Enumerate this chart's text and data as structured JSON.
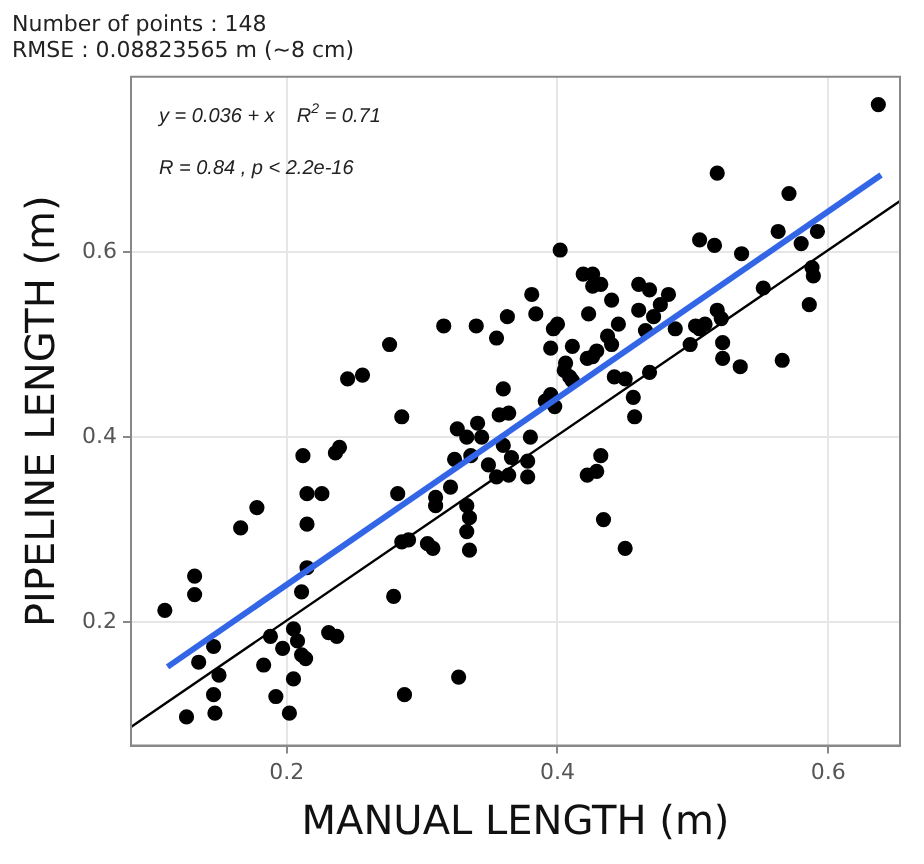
{
  "chart_data": {
    "type": "scatter",
    "title": "Number of points : 148",
    "subtitle": "RMSE : 0.08823565 m (~8 cm)",
    "xlabel": "MANUAL LENGTH (m)",
    "ylabel": "PIPELINE LENGTH (m)",
    "annotations": [
      "y = 0.036 + x    R$^{2}$ = 0.71",
      "R = 0.84 , p < 2.2e-16"
    ],
    "xlim": [
      0.085,
      0.653
    ],
    "ylim": [
      0.067,
      0.789
    ],
    "xticks": [
      0.2,
      0.4,
      0.6
    ],
    "yticks": [
      0.2,
      0.4,
      0.6
    ],
    "grid": true,
    "marker": "circle",
    "series": [
      {
        "type": "scatter",
        "color": "#000000",
        "x": [
          0.381,
          0.384,
          0.316,
          0.34,
          0.363,
          0.355,
          0.276,
          0.245,
          0.256,
          0.285,
          0.36,
          0.357,
          0.364,
          0.326,
          0.341,
          0.333,
          0.344,
          0.38,
          0.212,
          0.236,
          0.239,
          0.324,
          0.336,
          0.36,
          0.349,
          0.378,
          0.571,
          0.518,
          0.402,
          0.505,
          0.516,
          0.536,
          0.563,
          0.58,
          0.592,
          0.588,
          0.589,
          0.586,
          0.552,
          0.419,
          0.426,
          0.426,
          0.432,
          0.44,
          0.46,
          0.468,
          0.482,
          0.476,
          0.46,
          0.471,
          0.423,
          0.4,
          0.397,
          0.445,
          0.465,
          0.487,
          0.502,
          0.509,
          0.505,
          0.518,
          0.521,
          0.498,
          0.522,
          0.437,
          0.429,
          0.44,
          0.411,
          0.395,
          0.422,
          0.426,
          0.406,
          0.405,
          0.409,
          0.411,
          0.442,
          0.45,
          0.468,
          0.522,
          0.535,
          0.566,
          0.456,
          0.457,
          0.395,
          0.391,
          0.398,
          0.366,
          0.422,
          0.432,
          0.429,
          0.364,
          0.215,
          0.226,
          0.178,
          0.166,
          0.215,
          0.215,
          0.211,
          0.132,
          0.132,
          0.11,
          0.146,
          0.135,
          0.15,
          0.146,
          0.147,
          0.126,
          0.188,
          0.183,
          0.197,
          0.205,
          0.208,
          0.211,
          0.214,
          0.205,
          0.192,
          0.202,
          0.231,
          0.237,
          0.279,
          0.282,
          0.31,
          0.31,
          0.321,
          0.285,
          0.29,
          0.304,
          0.308,
          0.333,
          0.335,
          0.333,
          0.335,
          0.355,
          0.378,
          0.287,
          0.327,
          0.434,
          0.45,
          0.637
        ],
        "values": [
          0.554,
          0.533,
          0.52,
          0.52,
          0.53,
          0.507,
          0.5,
          0.463,
          0.467,
          0.422,
          0.452,
          0.424,
          0.426,
          0.409,
          0.415,
          0.4,
          0.4,
          0.4,
          0.38,
          0.383,
          0.389,
          0.376,
          0.38,
          0.391,
          0.37,
          0.374,
          0.663,
          0.685,
          0.602,
          0.613,
          0.607,
          0.598,
          0.622,
          0.609,
          0.622,
          0.583,
          0.574,
          0.543,
          0.561,
          0.576,
          0.576,
          0.563,
          0.565,
          0.548,
          0.565,
          0.559,
          0.554,
          0.543,
          0.537,
          0.53,
          0.533,
          0.522,
          0.517,
          0.522,
          0.515,
          0.517,
          0.52,
          0.522,
          0.517,
          0.537,
          0.528,
          0.5,
          0.502,
          0.509,
          0.493,
          0.5,
          0.498,
          0.496,
          0.485,
          0.487,
          0.48,
          0.472,
          0.465,
          0.461,
          0.465,
          0.463,
          0.47,
          0.485,
          0.476,
          0.483,
          0.443,
          0.422,
          0.446,
          0.439,
          0.433,
          0.378,
          0.359,
          0.38,
          0.363,
          0.359,
          0.339,
          0.339,
          0.324,
          0.302,
          0.306,
          0.259,
          0.233,
          0.25,
          0.23,
          0.213,
          0.174,
          0.157,
          0.143,
          0.122,
          0.102,
          0.098,
          0.185,
          0.154,
          0.172,
          0.193,
          0.18,
          0.165,
          0.161,
          0.139,
          0.12,
          0.102,
          0.189,
          0.185,
          0.228,
          0.339,
          0.335,
          0.326,
          0.346,
          0.287,
          0.289,
          0.285,
          0.28,
          0.326,
          0.313,
          0.298,
          0.278,
          0.357,
          0.357,
          0.122,
          0.141,
          0.311,
          0.28,
          0.759
        ]
      },
      {
        "type": "line",
        "color": "#3366e6",
        "marker": "none",
        "x": [
          0.112,
          0.639
        ],
        "values": [
          0.152,
          0.683
        ]
      },
      {
        "type": "line",
        "color": "#000000",
        "marker": "none",
        "x": [
          0.085,
          0.653
        ],
        "values": [
          0.087,
          0.655
        ]
      }
    ]
  }
}
